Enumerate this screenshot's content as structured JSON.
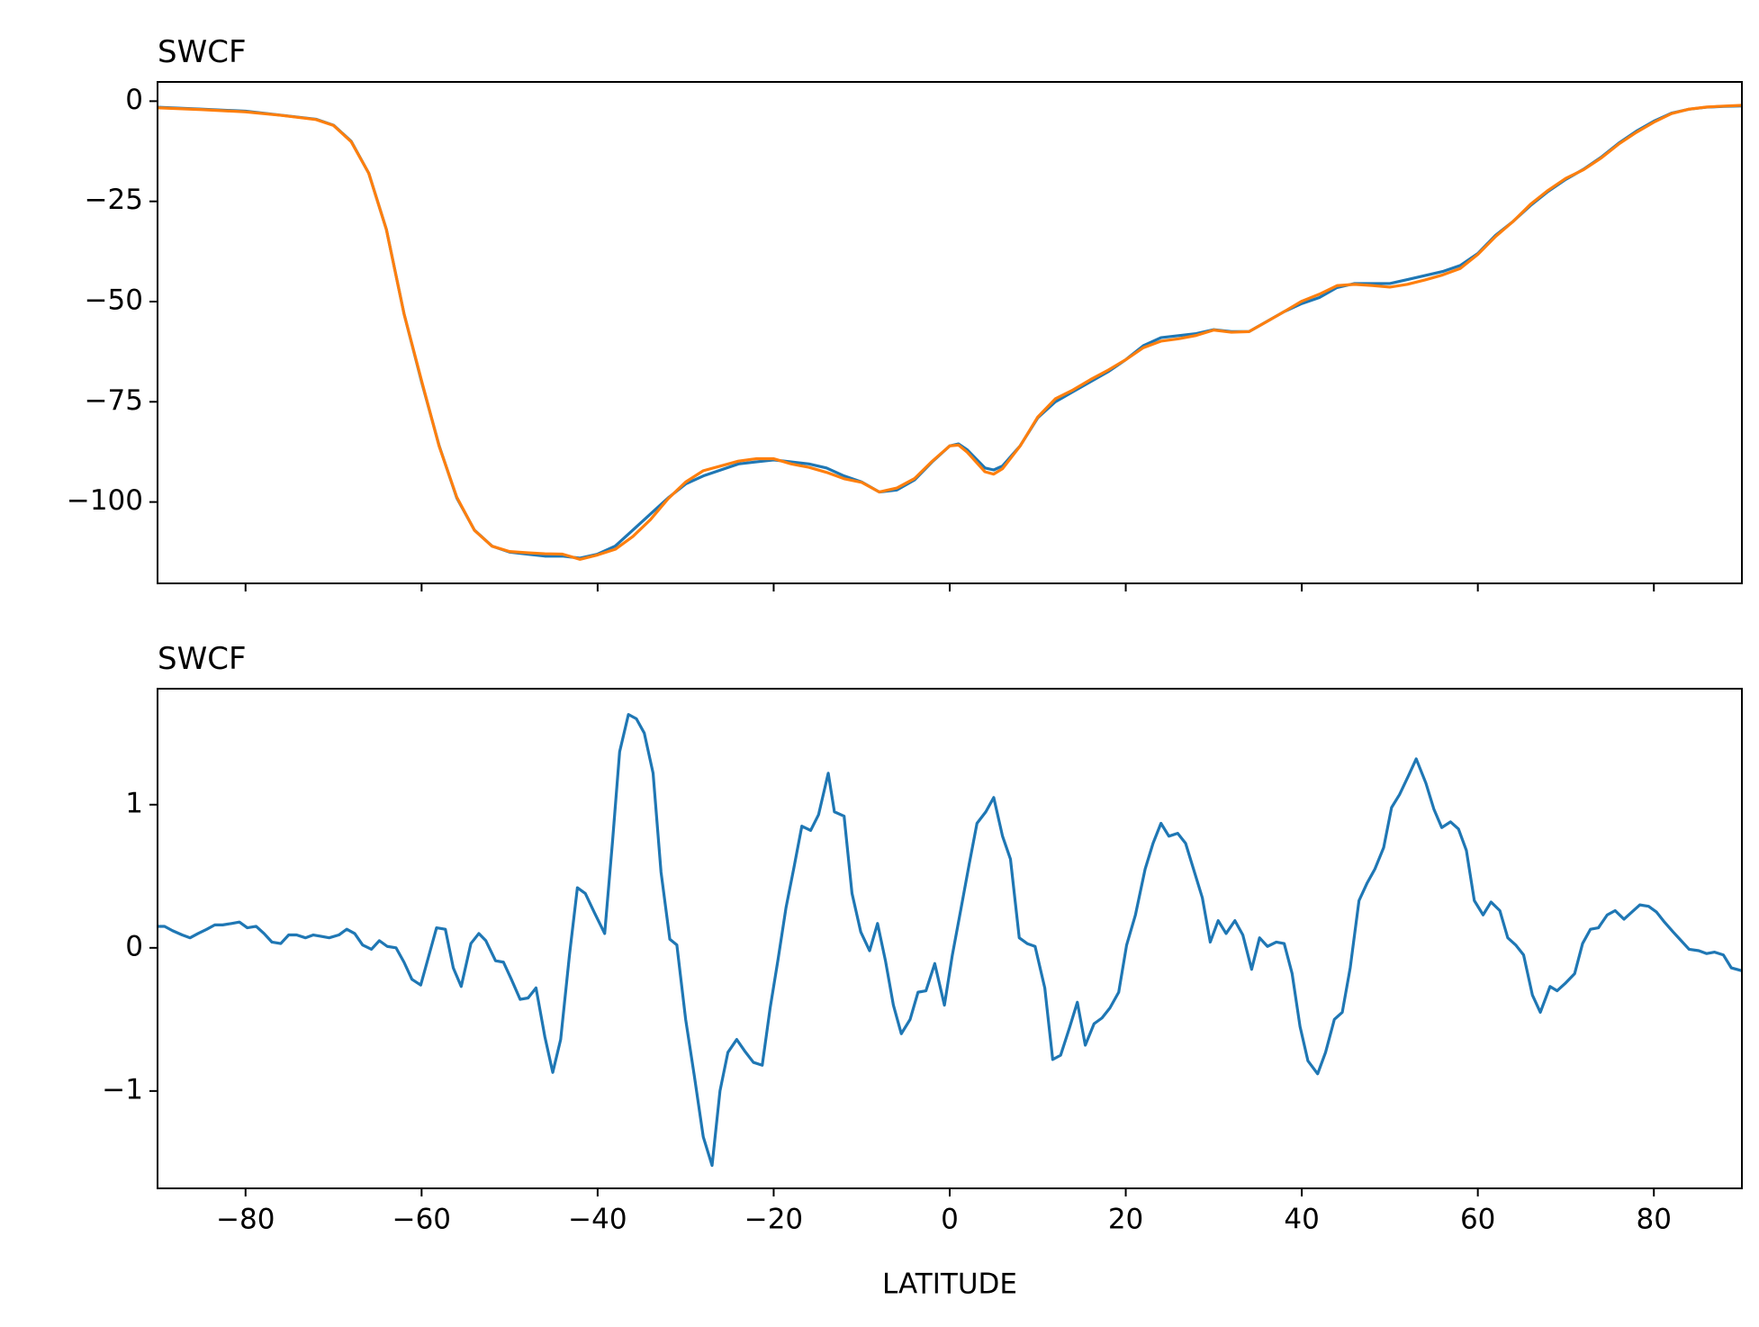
{
  "chart_data": [
    {
      "type": "line",
      "title": "SWCF",
      "x": [
        -90,
        -85,
        -80,
        -76,
        -72,
        -70,
        -68,
        -66,
        -64,
        -62,
        -60,
        -58,
        -56,
        -54,
        -52,
        -50,
        -48,
        -46,
        -44,
        -42,
        -40,
        -38,
        -36,
        -34,
        -32,
        -30,
        -28,
        -26,
        -24,
        -22,
        -20,
        -18,
        -16,
        -14,
        -12,
        -10,
        -8,
        -6,
        -4,
        -2,
        0,
        1,
        2,
        4,
        5,
        6,
        8,
        10,
        12,
        14,
        16,
        18,
        20,
        22,
        24,
        26,
        28,
        30,
        32,
        34,
        36,
        38,
        40,
        42,
        44,
        46,
        48,
        50,
        52,
        54,
        56,
        58,
        60,
        62,
        64,
        66,
        68,
        70,
        72,
        74,
        76,
        78,
        80,
        82,
        84,
        86,
        88,
        90
      ],
      "series": [
        {
          "color": "#1f77b4",
          "values": [
            -1.5,
            -2,
            -2.5,
            -3.5,
            -4.5,
            -6,
            -10,
            -18,
            -32,
            -53,
            -70,
            -86,
            -99,
            -107,
            -111,
            -112.5,
            -113,
            -113.5,
            -113.5,
            -114,
            -113,
            -111,
            -107,
            -103,
            -99,
            -95.5,
            -93.5,
            -92,
            -90.5,
            -90,
            -89.5,
            -90,
            -90.5,
            -91.5,
            -93.5,
            -95,
            -97.5,
            -97,
            -94.5,
            -90,
            -86,
            -85.5,
            -87,
            -91.5,
            -92,
            -91,
            -86,
            -79,
            -75,
            -72.5,
            -70,
            -67.5,
            -64.5,
            -61,
            -59,
            -58.5,
            -58,
            -57,
            -57.5,
            -57.5,
            -55,
            -52.5,
            -50.5,
            -49,
            -46.5,
            -45.5,
            -45.5,
            -45.5,
            -44.5,
            -43.5,
            -42.5,
            -41,
            -38,
            -33.5,
            -30,
            -26,
            -22.5,
            -19.5,
            -17,
            -14,
            -10.5,
            -7.5,
            -5,
            -3,
            -2,
            -1.5,
            -1.3,
            -1.2
          ]
        },
        {
          "color": "#ff7f0e",
          "values": [
            -1.65,
            -2.1,
            -2.67,
            -3.53,
            -4.59,
            -6.07,
            -10.12,
            -18,
            -32.03,
            -53,
            -69.75,
            -86.14,
            -98.8,
            -107.05,
            -111.02,
            -112.35,
            -112.65,
            -112.9,
            -113,
            -114.3,
            -113.2,
            -111.8,
            -108.6,
            -104.4,
            -99.2,
            -95,
            -92.2,
            -91,
            -89.8,
            -89.2,
            -89.2,
            -90.5,
            -91.35,
            -92.6,
            -94.2,
            -95.1,
            -97.5,
            -96.5,
            -94.15,
            -89.85,
            -86,
            -85.8,
            -87.6,
            -92.45,
            -93.05,
            -91.7,
            -86.03,
            -78.8,
            -74.25,
            -72.05,
            -69.45,
            -67.1,
            -64.5,
            -61.5,
            -59.87,
            -59.28,
            -58.45,
            -57.1,
            -57.65,
            -57.5,
            -55.02,
            -52.5,
            -49.9,
            -48.15,
            -46.02,
            -45.7,
            -46,
            -46.4,
            -45.7,
            -44.6,
            -43.36,
            -41.75,
            -38.25,
            -33.8,
            -30.02,
            -25.7,
            -22.22,
            -19.25,
            -17.12,
            -14.2,
            -10.72,
            -7.8,
            -5.25,
            -3.1,
            -1.99,
            -1.46,
            -1.22,
            -1.04
          ]
        }
      ],
      "xlim": [
        -90,
        90
      ],
      "ylim": [
        -120.3,
        4.8
      ],
      "yticks": [
        {
          "value": -100,
          "label": "−100"
        },
        {
          "value": -75,
          "label": "−75"
        },
        {
          "value": -50,
          "label": "−50"
        },
        {
          "value": -25,
          "label": "−25"
        },
        0
      ]
    },
    {
      "type": "line",
      "title": "SWCF",
      "x_label": "LATITUDE",
      "x": [
        -90,
        -89.2,
        -88.3,
        -87.2,
        -86.3,
        -85.4,
        -84.4,
        -83.5,
        -82.6,
        -81.6,
        -80.7,
        -79.8,
        -78.8,
        -77.9,
        -77,
        -76,
        -75.1,
        -74.2,
        -73.2,
        -72.3,
        -71.4,
        -70.5,
        -69.4,
        -68.5,
        -67.6,
        -66.7,
        -65.7,
        -64.8,
        -63.9,
        -62.9,
        -62,
        -61.1,
        -60.1,
        -59.2,
        -58.3,
        -57.3,
        -56.4,
        -55.5,
        -54.4,
        -53.5,
        -52.7,
        -51.6,
        -50.7,
        -49.8,
        -48.8,
        -47.9,
        -47,
        -46,
        -45.1,
        -44.2,
        -43.2,
        -42.3,
        -41.4,
        -40.4,
        -39.2,
        -38.3,
        -37.5,
        -36.5,
        -35.6,
        -34.7,
        -33.7,
        -32.8,
        -31.8,
        -31,
        -30,
        -29,
        -28,
        -27,
        -26.1,
        -25.2,
        -24.2,
        -23.3,
        -22.3,
        -21.3,
        -20.4,
        -19.5,
        -18.6,
        -17.7,
        -16.8,
        -15.8,
        -14.9,
        -13.8,
        -13.1,
        -12,
        -11.1,
        -10.1,
        -9.1,
        -8.2,
        -7.3,
        -6.4,
        -5.5,
        -4.5,
        -3.6,
        -2.7,
        -1.7,
        -0.6,
        0.3,
        1.3,
        2.2,
        3.1,
        4.1,
        5,
        6,
        6.9,
        7.9,
        8.8,
        9.7,
        10.8,
        11.7,
        12.6,
        13.6,
        14.5,
        15.4,
        16.4,
        17.3,
        18.2,
        19.2,
        20.1,
        21.1,
        22.2,
        23.1,
        24,
        24.9,
        25.9,
        26.8,
        27.7,
        28.7,
        29.6,
        30.5,
        31.4,
        32.4,
        33.3,
        34.3,
        35.2,
        36.1,
        37.1,
        38,
        38.9,
        39.8,
        40.7,
        41.8,
        42.7,
        43.7,
        44.6,
        45.5,
        46.5,
        47.4,
        48.3,
        49.3,
        50.2,
        51.1,
        52.1,
        53,
        54.1,
        55,
        55.9,
        56.9,
        57.8,
        58.7,
        59.6,
        60.6,
        61.5,
        62.5,
        63.4,
        64.3,
        65.2,
        66.2,
        67.1,
        68.2,
        69,
        69.9,
        71,
        71.9,
        72.8,
        73.7,
        74.7,
        75.6,
        76.6,
        77.5,
        78.4,
        79.4,
        80.3,
        81.2,
        82.2,
        83.1,
        84,
        85.1,
        86,
        86.9,
        87.9,
        88.8,
        90
      ],
      "series": [
        {
          "color": "#1f77b4",
          "values": [
            0.15,
            0.15,
            0.12,
            0.09,
            0.07,
            0.1,
            0.13,
            0.16,
            0.16,
            0.17,
            0.18,
            0.14,
            0.15,
            0.1,
            0.04,
            0.03,
            0.09,
            0.09,
            0.07,
            0.09,
            0.08,
            0.07,
            0.09,
            0.13,
            0.1,
            0.02,
            -0.01,
            0.05,
            0.01,
            0,
            -0.1,
            -0.22,
            -0.26,
            -0.06,
            0.14,
            0.13,
            -0.14,
            -0.27,
            0.03,
            0.1,
            0.05,
            -0.09,
            -0.1,
            -0.22,
            -0.36,
            -0.35,
            -0.28,
            -0.62,
            -0.87,
            -0.64,
            -0.05,
            0.42,
            0.38,
            0.25,
            0.1,
            0.75,
            1.37,
            1.63,
            1.6,
            1.5,
            1.22,
            0.53,
            0.06,
            0.02,
            -0.5,
            -0.9,
            -1.32,
            -1.52,
            -1.0,
            -0.73,
            -0.64,
            -0.72,
            -0.8,
            -0.82,
            -0.42,
            -0.08,
            0.28,
            0.56,
            0.85,
            0.82,
            0.93,
            1.22,
            0.95,
            0.92,
            0.38,
            0.11,
            -0.02,
            0.17,
            -0.09,
            -0.4,
            -0.6,
            -0.5,
            -0.31,
            -0.3,
            -0.11,
            -0.4,
            -0.05,
            0.28,
            0.58,
            0.87,
            0.95,
            1.05,
            0.78,
            0.62,
            0.07,
            0.03,
            0.01,
            -0.28,
            -0.78,
            -0.75,
            -0.56,
            -0.38,
            -0.68,
            -0.53,
            -0.49,
            -0.42,
            -0.31,
            0.02,
            0.23,
            0.55,
            0.73,
            0.87,
            0.78,
            0.8,
            0.73,
            0.55,
            0.35,
            0.04,
            0.19,
            0.1,
            0.19,
            0.09,
            -0.15,
            0.07,
            0.01,
            0.04,
            0.03,
            -0.18,
            -0.55,
            -0.79,
            -0.88,
            -0.73,
            -0.5,
            -0.45,
            -0.14,
            0.33,
            0.45,
            0.55,
            0.7,
            0.98,
            1.07,
            1.2,
            1.32,
            1.15,
            0.97,
            0.84,
            0.88,
            0.83,
            0.68,
            0.33,
            0.23,
            0.32,
            0.26,
            0.07,
            0.02,
            -0.05,
            -0.33,
            -0.45,
            -0.27,
            -0.3,
            -0.25,
            -0.18,
            0.03,
            0.13,
            0.14,
            0.23,
            0.26,
            0.2,
            0.25,
            0.3,
            0.29,
            0.25,
            0.18,
            0.11,
            0.05,
            -0.01,
            -0.02,
            -0.04,
            -0.03,
            -0.05,
            -0.14,
            -0.16
          ]
        }
      ],
      "xlim": [
        -90,
        90
      ],
      "xticks": [
        {
          "value": -80,
          "label": "−80"
        },
        {
          "value": -60,
          "label": "−60"
        },
        {
          "value": -40,
          "label": "−40"
        },
        {
          "value": -20,
          "label": "−20"
        },
        0,
        20,
        40,
        60,
        80
      ],
      "ylim": [
        -1.68,
        1.81
      ],
      "yticks": [
        {
          "value": -1,
          "label": "−1"
        },
        0,
        1
      ]
    }
  ]
}
